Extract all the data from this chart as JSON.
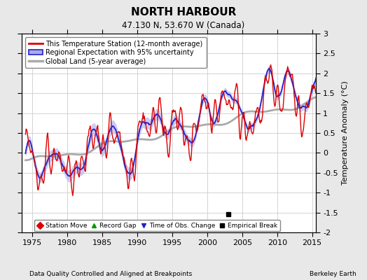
{
  "title": "NORTH HARBOUR",
  "subtitle": "47.130 N, 53.670 W (Canada)",
  "xlabel_note": "Data Quality Controlled and Aligned at Breakpoints",
  "credit": "Berkeley Earth",
  "xlim": [
    1973.5,
    2015.5
  ],
  "ylim": [
    -2,
    3
  ],
  "yticks": [
    -2,
    -1.5,
    -1,
    -0.5,
    0,
    0.5,
    1,
    1.5,
    2,
    2.5,
    3
  ],
  "xticks": [
    1975,
    1980,
    1985,
    1990,
    1995,
    2000,
    2005,
    2010,
    2015
  ],
  "ylabel": "Temperature Anomaly (°C)",
  "station_color": "#dd0000",
  "regional_color": "#2222cc",
  "regional_fill_color": "#aaaaee",
  "global_color": "#aaaaaa",
  "background_color": "#e8e8e8",
  "plot_bg_color": "#ffffff",
  "grid_color": "#cccccc",
  "empirical_break_x": 2003.0,
  "empirical_break_y": -1.55
}
